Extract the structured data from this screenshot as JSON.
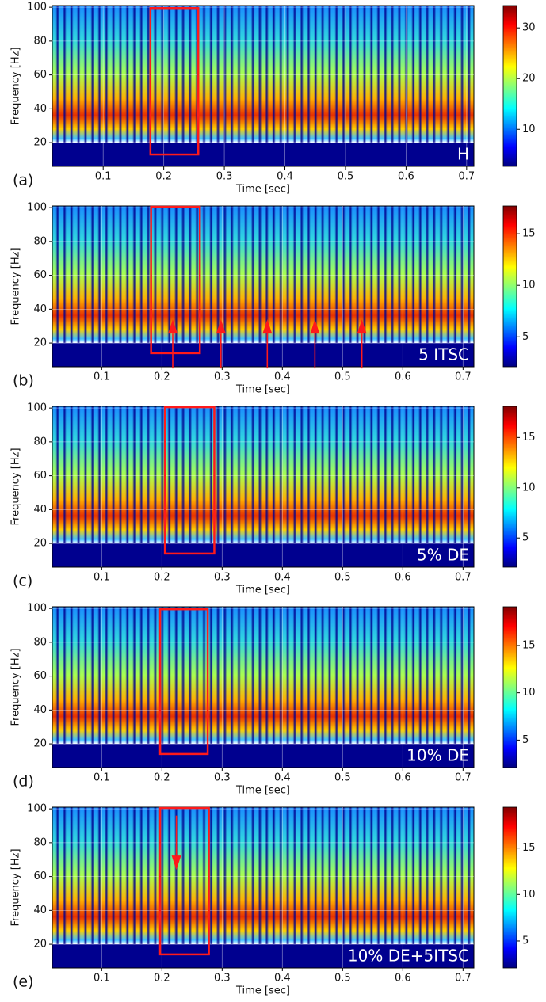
{
  "chart_data": [
    {
      "type": "spectrogram",
      "panel_label": "(a)",
      "annotation": "H",
      "xlabel": "Time [sec]",
      "ylabel": "Frequency [Hz]",
      "xlim": [
        0.016,
        0.712
      ],
      "ylim": [
        6,
        101
      ],
      "xticks": [
        0.1,
        0.2,
        0.3,
        0.4,
        0.5,
        0.6,
        0.7
      ],
      "yticks": [
        20,
        40,
        60,
        80,
        100
      ],
      "colorbar": {
        "lim": [
          2.7,
          34.4
        ],
        "ticks": [
          10,
          20,
          30
        ]
      },
      "box": {
        "x": [
          0.178,
          0.257
        ],
        "y": [
          13,
          99.5
        ]
      },
      "arrows": []
    },
    {
      "type": "spectrogram",
      "panel_label": "(b)",
      "annotation": "5 ITSC",
      "xlabel": "Time [sec]",
      "ylabel": "Frequency [Hz]",
      "xlim": [
        0.018,
        0.718
      ],
      "ylim": [
        6,
        101
      ],
      "xticks": [
        0.1,
        0.2,
        0.3,
        0.4,
        0.5,
        0.6,
        0.7
      ],
      "yticks": [
        20,
        40,
        60,
        80,
        100
      ],
      "colorbar": {
        "lim": [
          2.1,
          17.7
        ],
        "ticks": [
          5,
          10,
          15
        ]
      },
      "box": {
        "x": [
          0.182,
          0.263
        ],
        "y": [
          14,
          100.5
        ]
      },
      "arrows": [
        {
          "x": 0.218,
          "y": [
            5,
            34
          ]
        },
        {
          "x": 0.298,
          "y": [
            5,
            34
          ]
        },
        {
          "x": 0.375,
          "y": [
            5,
            34
          ]
        },
        {
          "x": 0.454,
          "y": [
            5,
            34
          ]
        },
        {
          "x": 0.532,
          "y": [
            5,
            34
          ]
        }
      ]
    },
    {
      "type": "spectrogram",
      "panel_label": "(c)",
      "annotation": "5% DE",
      "xlabel": "Time [sec]",
      "ylabel": "Frequency [Hz]",
      "xlim": [
        0.018,
        0.718
      ],
      "ylim": [
        6,
        101
      ],
      "xticks": [
        0.1,
        0.2,
        0.3,
        0.4,
        0.5,
        0.6,
        0.7
      ],
      "yticks": [
        20,
        40,
        60,
        80,
        100
      ],
      "colorbar": {
        "lim": [
          2.1,
          18.1
        ],
        "ticks": [
          5,
          10,
          15
        ]
      },
      "box": {
        "x": [
          0.205,
          0.287
        ],
        "y": [
          14,
          100.5
        ]
      },
      "arrows": []
    },
    {
      "type": "spectrogram",
      "panel_label": "(d)",
      "annotation": "10% DE",
      "xlabel": "Time [sec]",
      "ylabel": "Frequency [Hz]",
      "xlim": [
        0.018,
        0.718
      ],
      "ylim": [
        6,
        101
      ],
      "xticks": [
        0.1,
        0.2,
        0.3,
        0.4,
        0.5,
        0.6,
        0.7
      ],
      "yticks": [
        20,
        40,
        60,
        80,
        100
      ],
      "colorbar": {
        "lim": [
          2.1,
          19.1
        ],
        "ticks": [
          5,
          10,
          15
        ]
      },
      "box": {
        "x": [
          0.197,
          0.276
        ],
        "y": [
          14,
          99.5
        ]
      },
      "arrows": []
    },
    {
      "type": "spectrogram",
      "panel_label": "(e)",
      "annotation": "10% DE+5ITSC",
      "xlabel": "Time [sec]",
      "ylabel": "Frequency [Hz]",
      "xlim": [
        0.018,
        0.718
      ],
      "ylim": [
        6,
        101
      ],
      "xticks": [
        0.1,
        0.2,
        0.3,
        0.4,
        0.5,
        0.6,
        0.7
      ],
      "yticks": [
        20,
        40,
        60,
        80,
        100
      ],
      "colorbar": {
        "lim": [
          2.1,
          19.4
        ],
        "ticks": [
          5,
          10,
          15
        ]
      },
      "box": {
        "x": [
          0.197,
          0.278
        ],
        "y": [
          14,
          100.5
        ]
      },
      "arrows": [
        {
          "x": 0.224,
          "y": [
            96,
            64
          ]
        }
      ]
    }
  ]
}
